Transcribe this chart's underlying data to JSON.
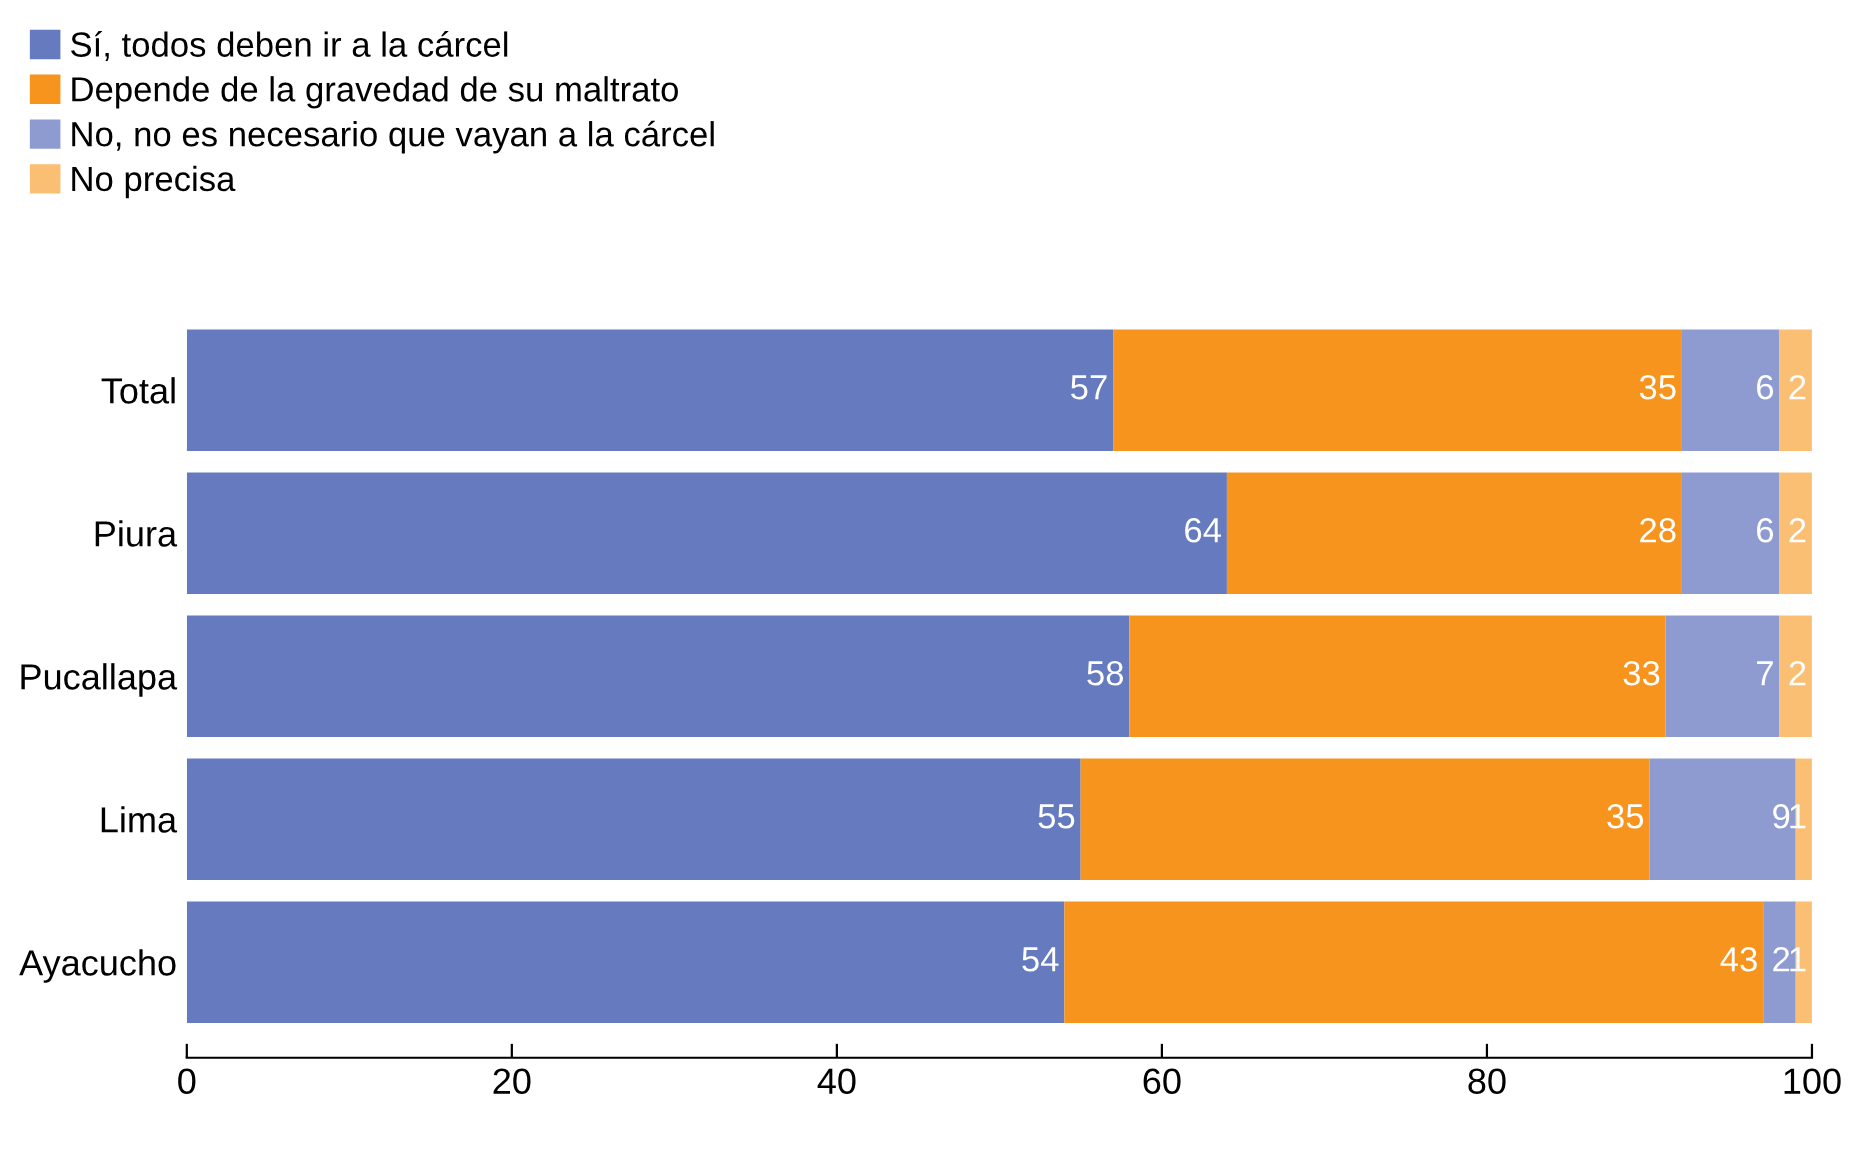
{
  "chart_data": {
    "type": "bar",
    "orientation": "horizontal",
    "stacked": true,
    "data_labels": true,
    "legend": "top left",
    "grid": false,
    "categories": [
      "Total",
      "Piura",
      "Pucallapa",
      "Lima",
      "Ayacucho"
    ],
    "series": [
      {
        "name": "Sí, todos deben ir a la cárcel",
        "color": "#667bbf",
        "values": [
          57,
          64,
          58,
          55,
          54
        ]
      },
      {
        "name": "Depende de la gravedad de su maltrato",
        "color": "#f7941d",
        "values": [
          35,
          28,
          33,
          35,
          43
        ]
      },
      {
        "name": "No, no es necesario que vayan a la cárcel",
        "color": "#8d9bd1",
        "values": [
          6,
          6,
          7,
          9,
          2
        ]
      },
      {
        "name": "No precisa",
        "color": "#fbbf74",
        "values": [
          2,
          2,
          2,
          1,
          1
        ]
      }
    ],
    "xlim": [
      0,
      100
    ],
    "xticks": [
      0,
      20,
      40,
      60,
      80,
      100
    ]
  }
}
